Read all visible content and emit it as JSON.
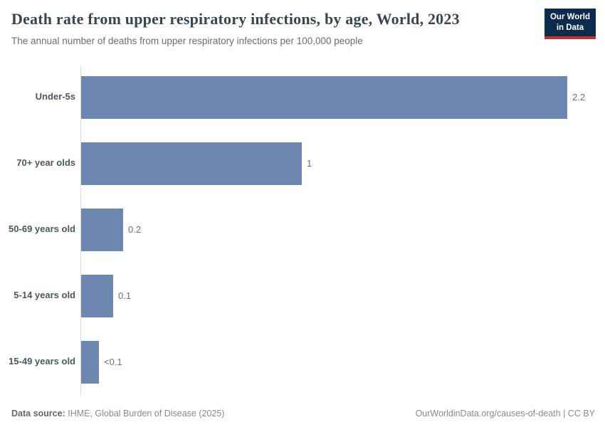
{
  "header": {
    "title": "Death rate from upper respiratory infections, by age, World, 2023",
    "subtitle": "The annual number of deaths from upper respiratory infections per 100,000 people",
    "logo": {
      "line1": "Our World",
      "line2": "in Data",
      "bg_color": "#0d2b4d",
      "accent_color": "#bf312b"
    }
  },
  "chart_data": {
    "type": "bar",
    "orientation": "horizontal",
    "title": "Death rate from upper respiratory infections, by age, World, 2023",
    "subtitle": "The annual number of deaths from upper respiratory infections per 100,000 people",
    "categories": [
      "Under-5s",
      "70+ year olds",
      "50-69 years old",
      "5-14 years old",
      "15-49 years old"
    ],
    "values": [
      2.2,
      1.0,
      0.19,
      0.145,
      0.08
    ],
    "value_labels": [
      "2.2",
      "1",
      "0.2",
      "0.1",
      "<0.1"
    ],
    "xlabel": "",
    "ylabel": "",
    "xlim": [
      0,
      2.2
    ],
    "grid": false,
    "legend": "none",
    "bar_color": "#6e87b0",
    "axis_line_color": "#dcdcdc"
  },
  "footer": {
    "source_label": "Data source:",
    "source_value": "IHME, Global Burden of Disease (2025)",
    "credit": "OurWorldinData.org/causes-of-death | CC BY"
  }
}
